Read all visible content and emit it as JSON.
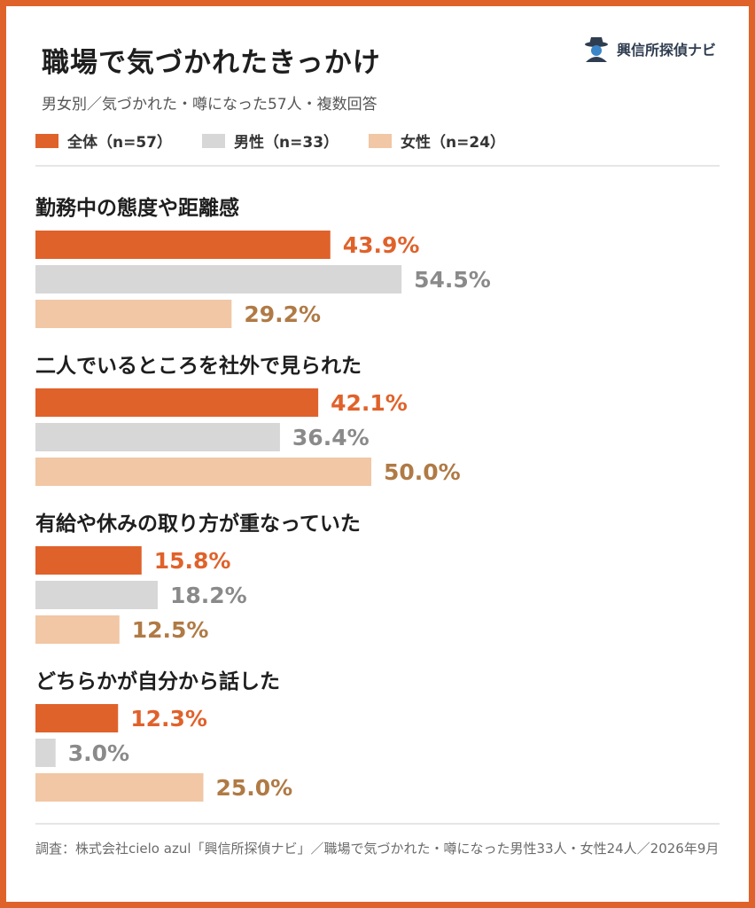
{
  "title": "職場で気づかれたきっかけ",
  "subtitle": "男女別／気づかれた・噂になった57人・複数回答",
  "brand": {
    "name": "興信所探偵ナビ",
    "icon": "detective-logo-icon"
  },
  "colors": {
    "all": "#e0622b",
    "male": "#d7d7d7",
    "female": "#f1c7a5",
    "frame": "#e0622b",
    "label_all": "#e0622b",
    "label_male": "#8a8a8a",
    "label_female": "#b07a45"
  },
  "legend": [
    {
      "label": "全体（n=57）",
      "key": "all"
    },
    {
      "label": "男性（n=33）",
      "key": "male"
    },
    {
      "label": "女性（n=24）",
      "key": "female"
    }
  ],
  "chart_data": {
    "type": "bar",
    "orientation": "horizontal",
    "categories": [
      "勤務中の態度や距離感",
      "二人でいるところを社外で見られた",
      "有給や休みの取り方が重なっていた",
      "どちらかが自分から話した"
    ],
    "series": [
      {
        "name": "全体（n=57）",
        "key": "all",
        "values": [
          43.9,
          42.1,
          15.8,
          12.3
        ]
      },
      {
        "name": "男性（n=33）",
        "key": "male",
        "values": [
          54.5,
          36.4,
          18.2,
          3.0
        ]
      },
      {
        "name": "女性（n=24）",
        "key": "female",
        "values": [
          29.2,
          50.0,
          12.5,
          25.0
        ]
      }
    ],
    "value_suffix": "%",
    "xlim": [
      0,
      100
    ],
    "grid": false,
    "legend_position": "top-left"
  },
  "footnote": "調査：株式会社cielo azul「興信所探偵ナビ」／職場で気づかれた・噂になった男性33人・女性24人／2026年9月"
}
